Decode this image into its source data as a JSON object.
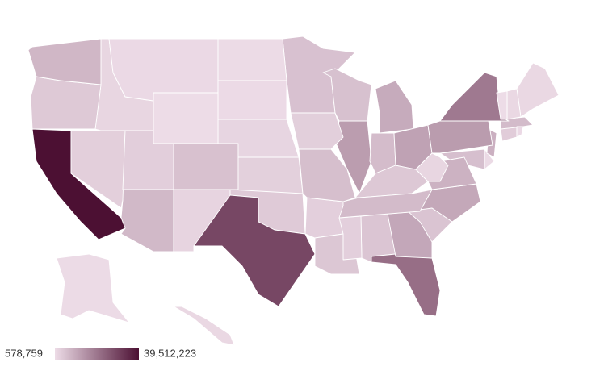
{
  "chart_data": {
    "type": "choropleth",
    "values": [
      4903185,
      731545,
      7278717,
      3017804,
      39512223,
      5758736,
      3565287,
      973764,
      21477737,
      10617423,
      1415872,
      1787065,
      12671821,
      6732219,
      3155070,
      2913314,
      4467673,
      4648794,
      1344212,
      6045680,
      6892503,
      9986857,
      5639632,
      2976149,
      6137428,
      1068778,
      1934408,
      3080156,
      1359711,
      8882190,
      2096829,
      19453561,
      10488084,
      762062,
      11689100,
      3956971,
      4217737,
      12801989,
      1059361,
      5148714,
      884659,
      6829174,
      28995881,
      3205958,
      623989,
      8535519,
      7614893,
      1792147,
      5822434,
      578759
    ],
    "legend_range": [
      {
        "value": 578759,
        "label": "578,759"
      },
      {
        "value": 39512223,
        "label": "39,512,223"
      }
    ],
    "color_low": "#eddce7",
    "color_high": "#4c1033"
  }
}
